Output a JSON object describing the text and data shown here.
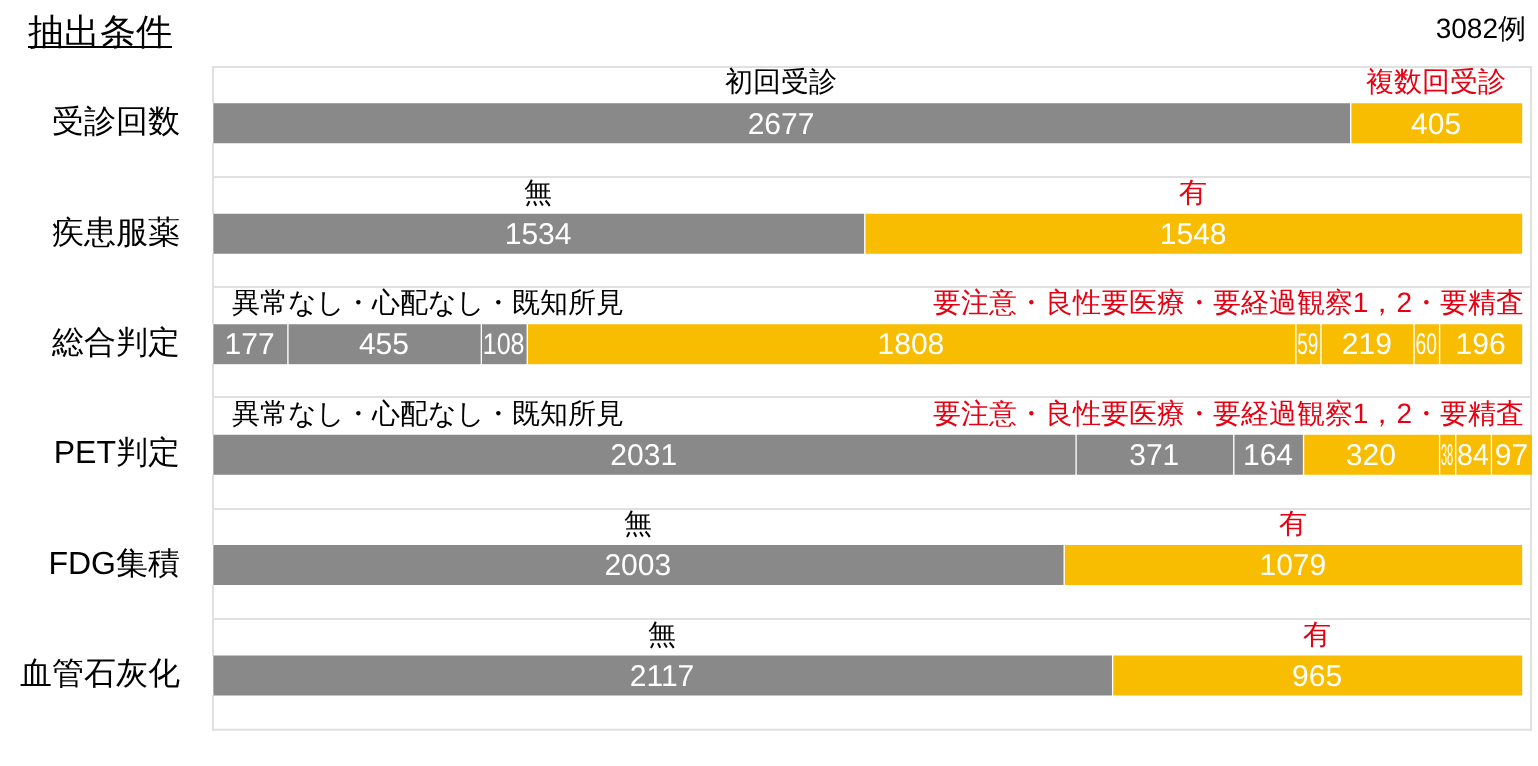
{
  "chart_data": {
    "type": "bar",
    "orientation": "horizontal",
    "stacked": true,
    "title": "抽出条件",
    "categories": [
      "受診回数",
      "疾患服薬",
      "総合判定",
      "PET判定",
      "FDG集積",
      "血管石灰化"
    ],
    "series": [
      {
        "color": "#898989",
        "values": [
          2677,
          1534,
          177,
          2031,
          2003,
          2117
        ]
      },
      {
        "colors": [
          "#f8bc00",
          "#f8bc00",
          "#898989",
          "#898989",
          "#f8bc00",
          "#f8bc00"
        ],
        "values": [
          405,
          1548,
          455,
          371,
          1079,
          965
        ]
      },
      {
        "color": "#898989",
        "values": [
          null,
          null,
          108,
          164,
          null,
          null
        ]
      },
      {
        "color": "#f8bc00",
        "values": [
          null,
          null,
          1808,
          320,
          null,
          null
        ]
      },
      {
        "color": "#f8bc00",
        "values": [
          null,
          null,
          59,
          38,
          null,
          null
        ]
      },
      {
        "color": "#f8bc00",
        "values": [
          null,
          null,
          219,
          84,
          null,
          null
        ]
      },
      {
        "color": "#f8bc00",
        "values": [
          null,
          null,
          60,
          97,
          null,
          null
        ]
      },
      {
        "color": "#f8bc00",
        "values": [
          null,
          null,
          196,
          null,
          null,
          null
        ]
      }
    ],
    "xlim": [
      0,
      3105
    ],
    "tick_labels": "y",
    "data_labels": true,
    "annotations": [
      "3082例",
      "初回受診",
      "複数回受診",
      "無",
      "有",
      "異常なし・心配なし・既知所見",
      "要注意・良性要医療・要経過観察1，2・要精査",
      "異常なし・心配なし・既知所見",
      "要注意・良性要医療・要経過観察1，2・要精査",
      "無",
      "有",
      "無",
      "有"
    ]
  }
}
